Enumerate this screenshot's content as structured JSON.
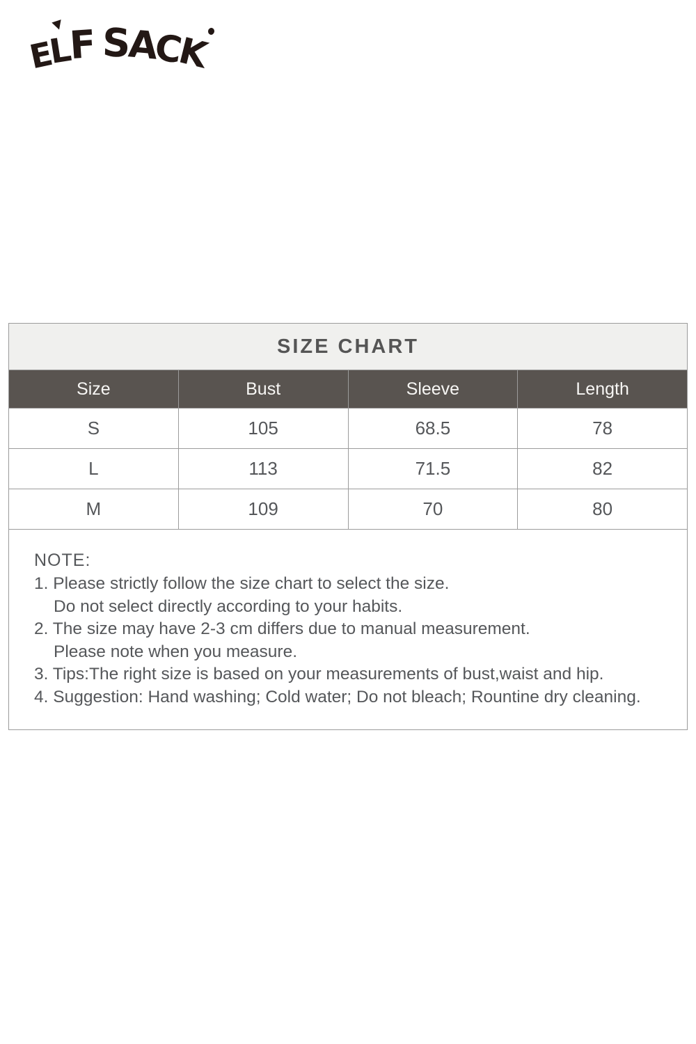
{
  "brand": {
    "name": "ELF SACK",
    "letters": [
      "E",
      "L",
      "F",
      "S",
      "A",
      "C",
      "K"
    ]
  },
  "size_chart": {
    "title": "SIZE CHART",
    "columns": [
      "Size",
      "Bust",
      "Sleeve",
      "Length"
    ],
    "rows": [
      [
        "S",
        "105",
        "68.5",
        "78"
      ],
      [
        "L",
        "113",
        "71.5",
        "82"
      ],
      [
        "M",
        "109",
        "70",
        "80"
      ]
    ]
  },
  "note": {
    "heading": "NOTE:",
    "lines": [
      {
        "text": "1. Please strictly follow the size chart to select the size.",
        "indent": false
      },
      {
        "text": "Do not select directly according to your habits.",
        "indent": true
      },
      {
        "text": "2. The size may have 2-3 cm differs due to manual measurement.",
        "indent": false
      },
      {
        "text": "Please note when you measure.",
        "indent": true
      },
      {
        "text": "3. Tips:The right size is based on your measurements of bust,waist and hip.",
        "indent": false
      },
      {
        "text": "4. Suggestion: Hand washing; Cold water; Do not bleach; Rountine dry cleaning.",
        "indent": false
      }
    ]
  },
  "colors": {
    "header_bg": "#595450",
    "header_text": "#f7f6f4",
    "title_bg": "#f0f0ee",
    "border": "#9b9b9b",
    "body_text": "#55575a",
    "logo": "#231815"
  },
  "chart_data": {
    "type": "table",
    "title": "SIZE CHART",
    "columns": [
      "Size",
      "Bust",
      "Sleeve",
      "Length"
    ],
    "rows": [
      [
        "S",
        105,
        68.5,
        78
      ],
      [
        "L",
        113,
        71.5,
        82
      ],
      [
        "M",
        109,
        70,
        80
      ]
    ]
  }
}
